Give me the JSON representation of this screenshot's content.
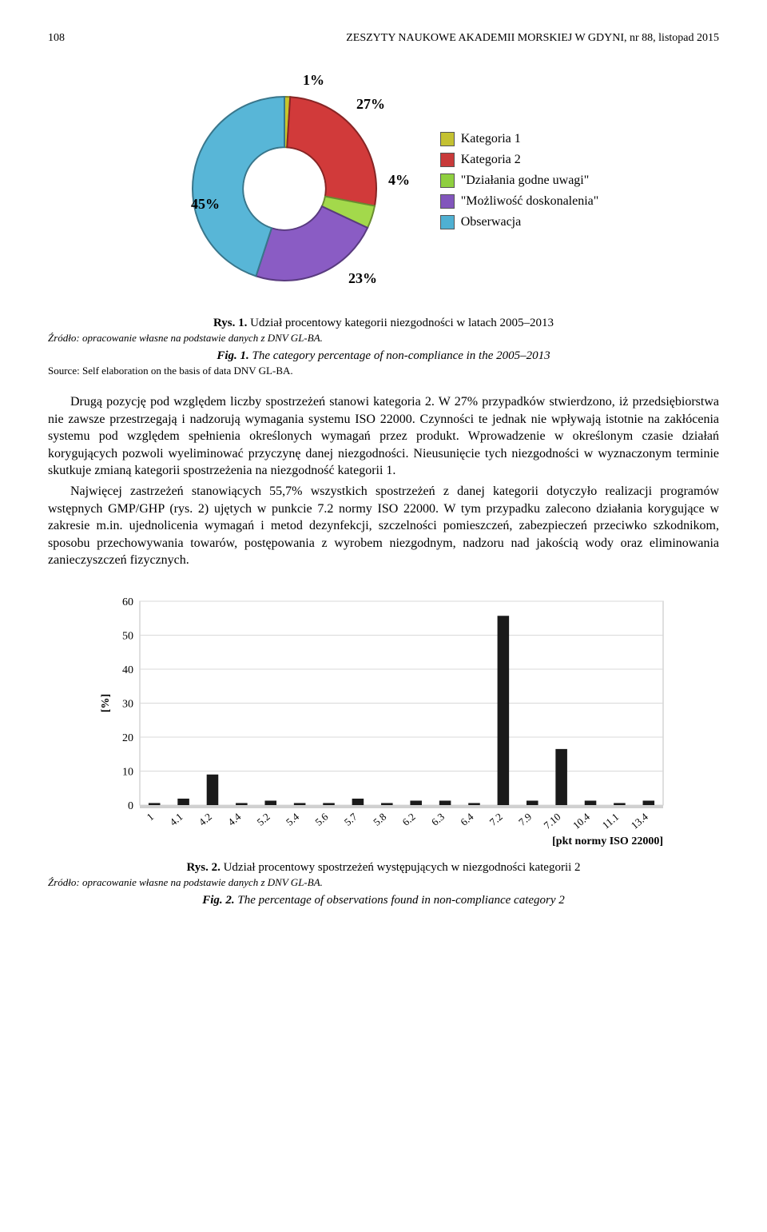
{
  "header": {
    "page_no": "108",
    "journal": "ZESZYTY NAUKOWE AKADEMII MORSKIEJ W GDYNI, nr 88, listopad 2015"
  },
  "donut": {
    "type": "pie",
    "inner_radius_ratio": 0.45,
    "slices": [
      {
        "label": "1%",
        "value": 1,
        "color": "#c9c52b",
        "legend": "Kategoria 1",
        "swatch": "#c4c132"
      },
      {
        "label": "27%",
        "value": 27,
        "color": "#d13a3a",
        "legend": "Kategoria 2",
        "swatch": "#c83a3a"
      },
      {
        "label": "4%",
        "value": 4,
        "color": "#a3d94b",
        "legend": "\"Działania godne uwagi\"",
        "swatch": "#8fcf3f"
      },
      {
        "label": "23%",
        "value": 23,
        "color": "#8a5cc4",
        "legend": "\"Możliwość doskonalenia\"",
        "swatch": "#8256bc"
      },
      {
        "label": "45%",
        "value": 45,
        "color": "#58b6d7",
        "legend": "Obserwacja",
        "swatch": "#4fb0d2"
      }
    ],
    "background": "#ffffff"
  },
  "fig1": {
    "rys_prefix": "Rys. 1.",
    "rys_text": " Udział procentowy kategorii niezgodności w latach 2005–2013",
    "source_pl": "Źródło: opracowanie własne na podstawie danych z DNV GL-BA.",
    "fig_prefix": "Fig. 1.",
    "fig_text": " The category percentage of non-compliance in the 2005–2013",
    "source_en": "Source: Self elaboration on the basis of data DNV GL-BA."
  },
  "body": {
    "p1": "Drugą pozycję pod względem liczby spostrzeżeń stanowi kategoria 2. W 27% przypadków stwierdzono, iż przedsiębiorstwa nie zawsze przestrzegają i nadzorują wymagania systemu ISO 22000. Czynności te jednak nie wpływają istotnie na zakłócenia systemu pod względem spełnienia określonych wymagań przez produkt. Wprowadzenie w określonym czasie działań korygujących pozwoli wyeliminować przyczynę danej niezgodności. Nieusunięcie tych niezgodności w wyznaczonym terminie skutkuje zmianą kategorii spostrzeżenia na niezgodność kategorii 1.",
    "p2": "Najwięcej zastrzeżeń stanowiących 55,7% wszystkich spostrzeżeń z danej kategorii dotyczyło realizacji programów wstępnych GMP/GHP (rys. 2) ujętych w punkcie 7.2 normy ISO 22000. W tym przypadku zalecono działania korygujące w zakresie m.in. ujednolicenia wymagań i metod dezynfekcji, szczelności pomieszczeń, zabezpieczeń przeciwko szkodnikom, sposobu przechowywania towarów, postępowania z wyrobem niezgodnym, nadzoru nad jakością wody oraz eliminowania zanieczyszczeń fizycznych."
  },
  "bar": {
    "type": "bar",
    "categories": [
      "1",
      "4.1",
      "4.2",
      "4.4",
      "5.2",
      "5.4",
      "5.6",
      "5.7",
      "5.8",
      "6.2",
      "6.3",
      "6.4",
      "7.2",
      "7.9",
      "7.10",
      "10.4",
      "11.1",
      "13.4"
    ],
    "values": [
      0.6,
      1.9,
      9.0,
      0.6,
      1.3,
      0.6,
      0.6,
      1.9,
      0.6,
      1.3,
      1.3,
      0.6,
      55.7,
      1.3,
      16.5,
      1.3,
      0.6,
      1.3
    ],
    "bar_color": "#1a1a1a",
    "ylim": [
      0,
      60
    ],
    "ytick_step": 10,
    "grid_color": "#d9d9d9",
    "border_color": "#bfbfbf",
    "ylabel": "[%]",
    "xlabel": "[pkt normy ISO 22000]",
    "label_fontsize": 14,
    "bar_width": 0.4
  },
  "fig2": {
    "rys_prefix": "Rys. 2.",
    "rys_text": " Udział procentowy spostrzeżeń występujących w niezgodności kategorii 2",
    "source_pl": "Źródło: opracowanie własne na podstawie danych z DNV GL-BA.",
    "fig_prefix": "Fig. 2.",
    "fig_text": " The percentage of observations found in non-compliance category 2"
  }
}
